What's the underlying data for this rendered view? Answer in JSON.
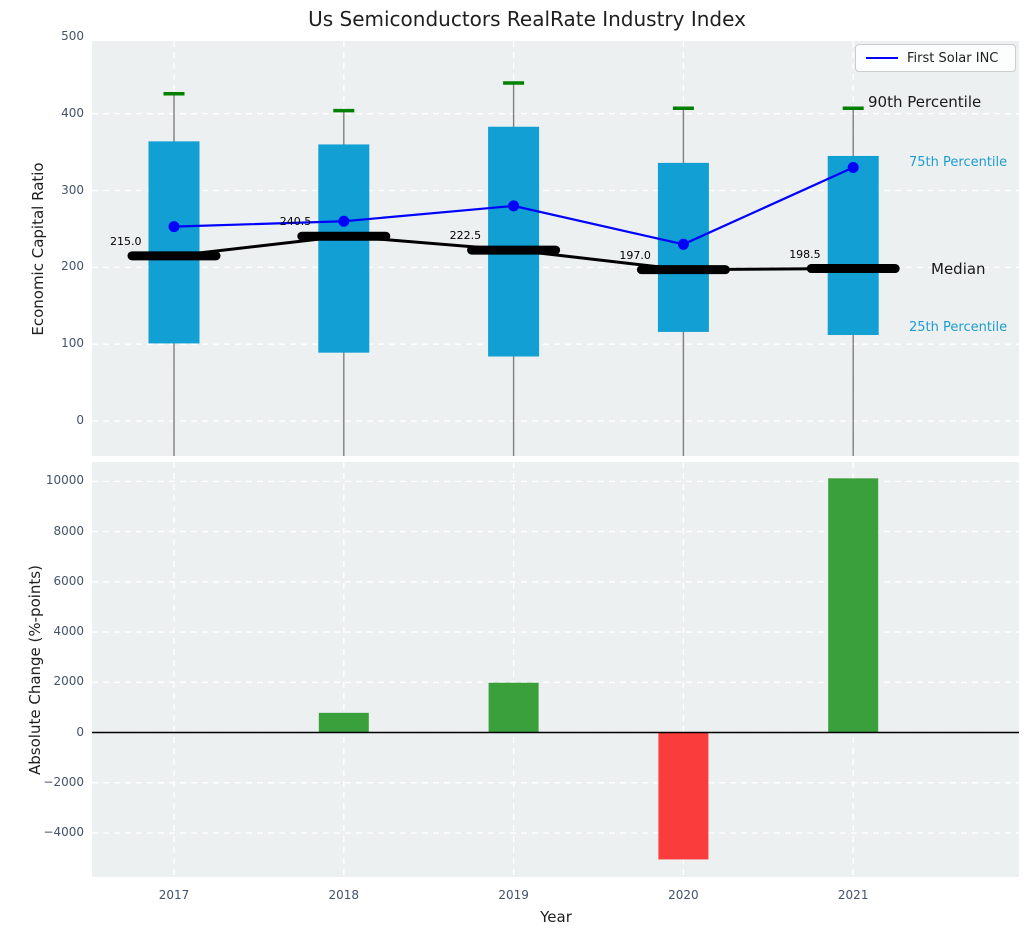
{
  "title": "Us Semiconductors RealRate Industry Index",
  "legend": {
    "first_solar_label": "First Solar INC"
  },
  "annotations": {
    "p90": "90th Percentile",
    "p75": "75th Percentile",
    "median": "Median",
    "p25": "25th Percentile"
  },
  "colors": {
    "axes_bg": "#ecf0f1",
    "grid": "#ffffff",
    "box_fill": "#119fd4",
    "cap_green": "#008000",
    "whisker_gray": "#7f7f7f",
    "line_blue": "#0000ff",
    "median_black": "#000000",
    "bar_positive": "#3aa03c",
    "bar_negative": "#fb3c3c",
    "tick_text": "#44536b",
    "label_text": "#1f1f1f",
    "zero_line": "#000000"
  },
  "chart_data": [
    {
      "type": "boxplot+line",
      "title": "Us Semiconductors RealRate Industry Index",
      "ylabel": "Economic Capital Ratio",
      "yticks": [
        500,
        400,
        300,
        200,
        100,
        0
      ],
      "ylim": [
        -45.5,
        494.6
      ],
      "grid": true,
      "legend_position": "upper right",
      "categories": [
        "2017",
        "2018",
        "2019",
        "2020",
        "2021"
      ],
      "boxes": [
        {
          "year": "2017",
          "p90": 426,
          "p75": 364,
          "median": 215.0,
          "p25": 101
        },
        {
          "year": "2018",
          "p90": 404,
          "p75": 360,
          "median": 240.5,
          "p25": 89
        },
        {
          "year": "2019",
          "p90": 440,
          "p75": 383,
          "median": 222.5,
          "p25": 84
        },
        {
          "year": "2020",
          "p90": 407,
          "p75": 336,
          "median": 197.0,
          "p25": 116
        },
        {
          "year": "2021",
          "p90": 407,
          "p75": 345,
          "median": 198.5,
          "p25": 112
        }
      ],
      "median_labels": [
        "215.0",
        "240.5",
        "222.5",
        "197.0",
        "198.5"
      ],
      "series": [
        {
          "name": "First Solar INC",
          "type": "line",
          "color": "#0000ff",
          "values": [
            253,
            260,
            280,
            230,
            330
          ]
        }
      ]
    },
    {
      "type": "bar",
      "xlabel": "Year",
      "ylabel": "Absolute Change (%-points)",
      "yticks": [
        10000,
        8000,
        6000,
        4000,
        2000,
        0,
        -2000,
        -4000
      ],
      "ylim": [
        -5750,
        10770
      ],
      "grid": true,
      "categories": [
        "2017",
        "2018",
        "2019",
        "2020",
        "2021"
      ],
      "values": [
        0,
        785,
        1985,
        -5050,
        10120
      ]
    }
  ]
}
